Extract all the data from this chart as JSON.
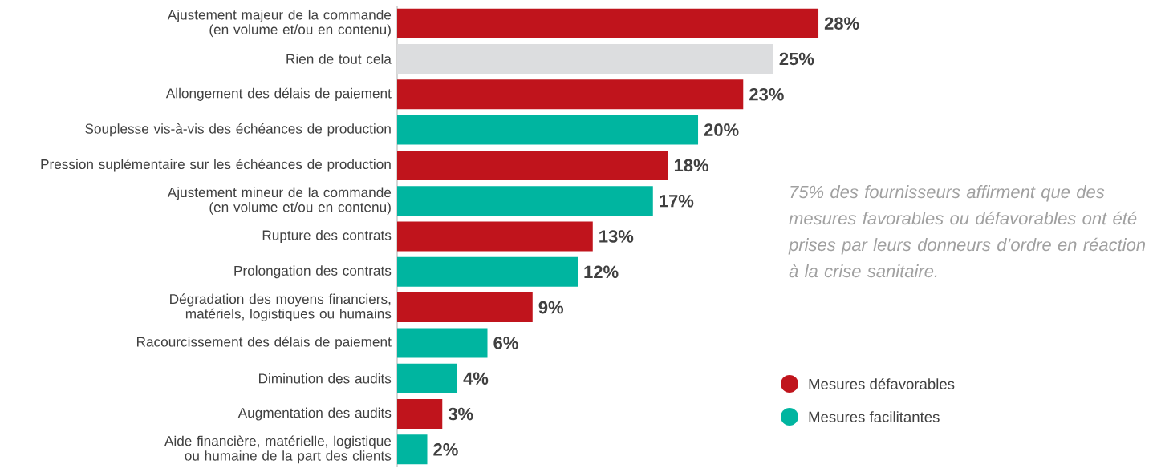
{
  "chart_data": {
    "type": "bar",
    "orientation": "horizontal",
    "categories": [
      "Ajustement majeur de la commande (en volume et/ou en contenu)",
      "Rien de tout cela",
      "Allongement des délais de paiement",
      "Souplesse vis-à-vis des échéances de production",
      "Pression suplémentaire sur les échéances de production",
      "Ajustement mineur de la commande (en volume et/ou en contenu)",
      "Rupture des contrats",
      "Prolongation des contrats",
      "Dégradation des moyens financiers, matériels, logistiques ou humains",
      "Racourcissement des délais de paiement",
      "Diminution des audits",
      "Augmentation des audits",
      "Aide financière, matérielle, logistique ou humaine de la part des clients"
    ],
    "series": [
      {
        "name": "Mesures défavorables",
        "color": "#c0141c",
        "values": [
          28,
          null,
          23,
          null,
          18,
          null,
          13,
          null,
          9,
          null,
          null,
          3,
          null
        ],
        "value_labels": [
          "28%",
          null,
          "23%",
          null,
          "18%",
          null,
          "13%",
          null,
          "9%",
          null,
          null,
          "3%",
          null
        ]
      },
      {
        "color": "#dcdddf",
        "values": [
          null,
          25,
          null,
          null,
          null,
          null,
          null,
          null,
          null,
          null,
          null,
          null,
          null
        ],
        "value_labels": [
          null,
          "25%",
          null,
          null,
          null,
          null,
          null,
          null,
          null,
          null,
          null,
          null,
          null
        ]
      },
      {
        "name": "Mesures facilitantes",
        "color": "#00b5a0",
        "values": [
          null,
          null,
          null,
          20,
          null,
          17,
          null,
          12,
          null,
          6,
          4,
          null,
          2
        ],
        "value_labels": [
          null,
          null,
          null,
          "20%",
          null,
          "17%",
          null,
          "12%",
          null,
          "6%",
          "4%",
          null,
          "2%"
        ]
      }
    ],
    "legend": "right",
    "annotations": [
      "75% des fournisseurs affirment que des mesures favorables ou défavorables ont été prises par leurs donneurs d’ordre en réaction à la crise sanitaire."
    ]
  }
}
